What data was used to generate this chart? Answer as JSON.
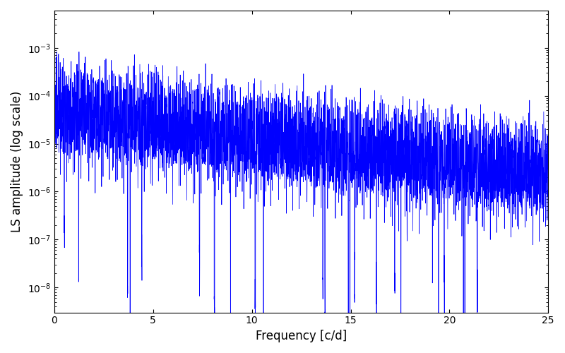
{
  "xlabel": "Frequency [c/d]",
  "ylabel": "LS amplitude (log scale)",
  "line_color": "#0000FF",
  "xlim": [
    0,
    25
  ],
  "ylim": [
    3e-09,
    0.006
  ],
  "xticks": [
    0,
    5,
    10,
    15,
    20,
    25
  ],
  "background_color": "#ffffff",
  "linewidth": 0.5,
  "n_points": 8000,
  "seed": 17,
  "freq_max": 25.0,
  "envelope_peak": 0.0025,
  "envelope_floor": 4e-05,
  "decay": 0.13
}
